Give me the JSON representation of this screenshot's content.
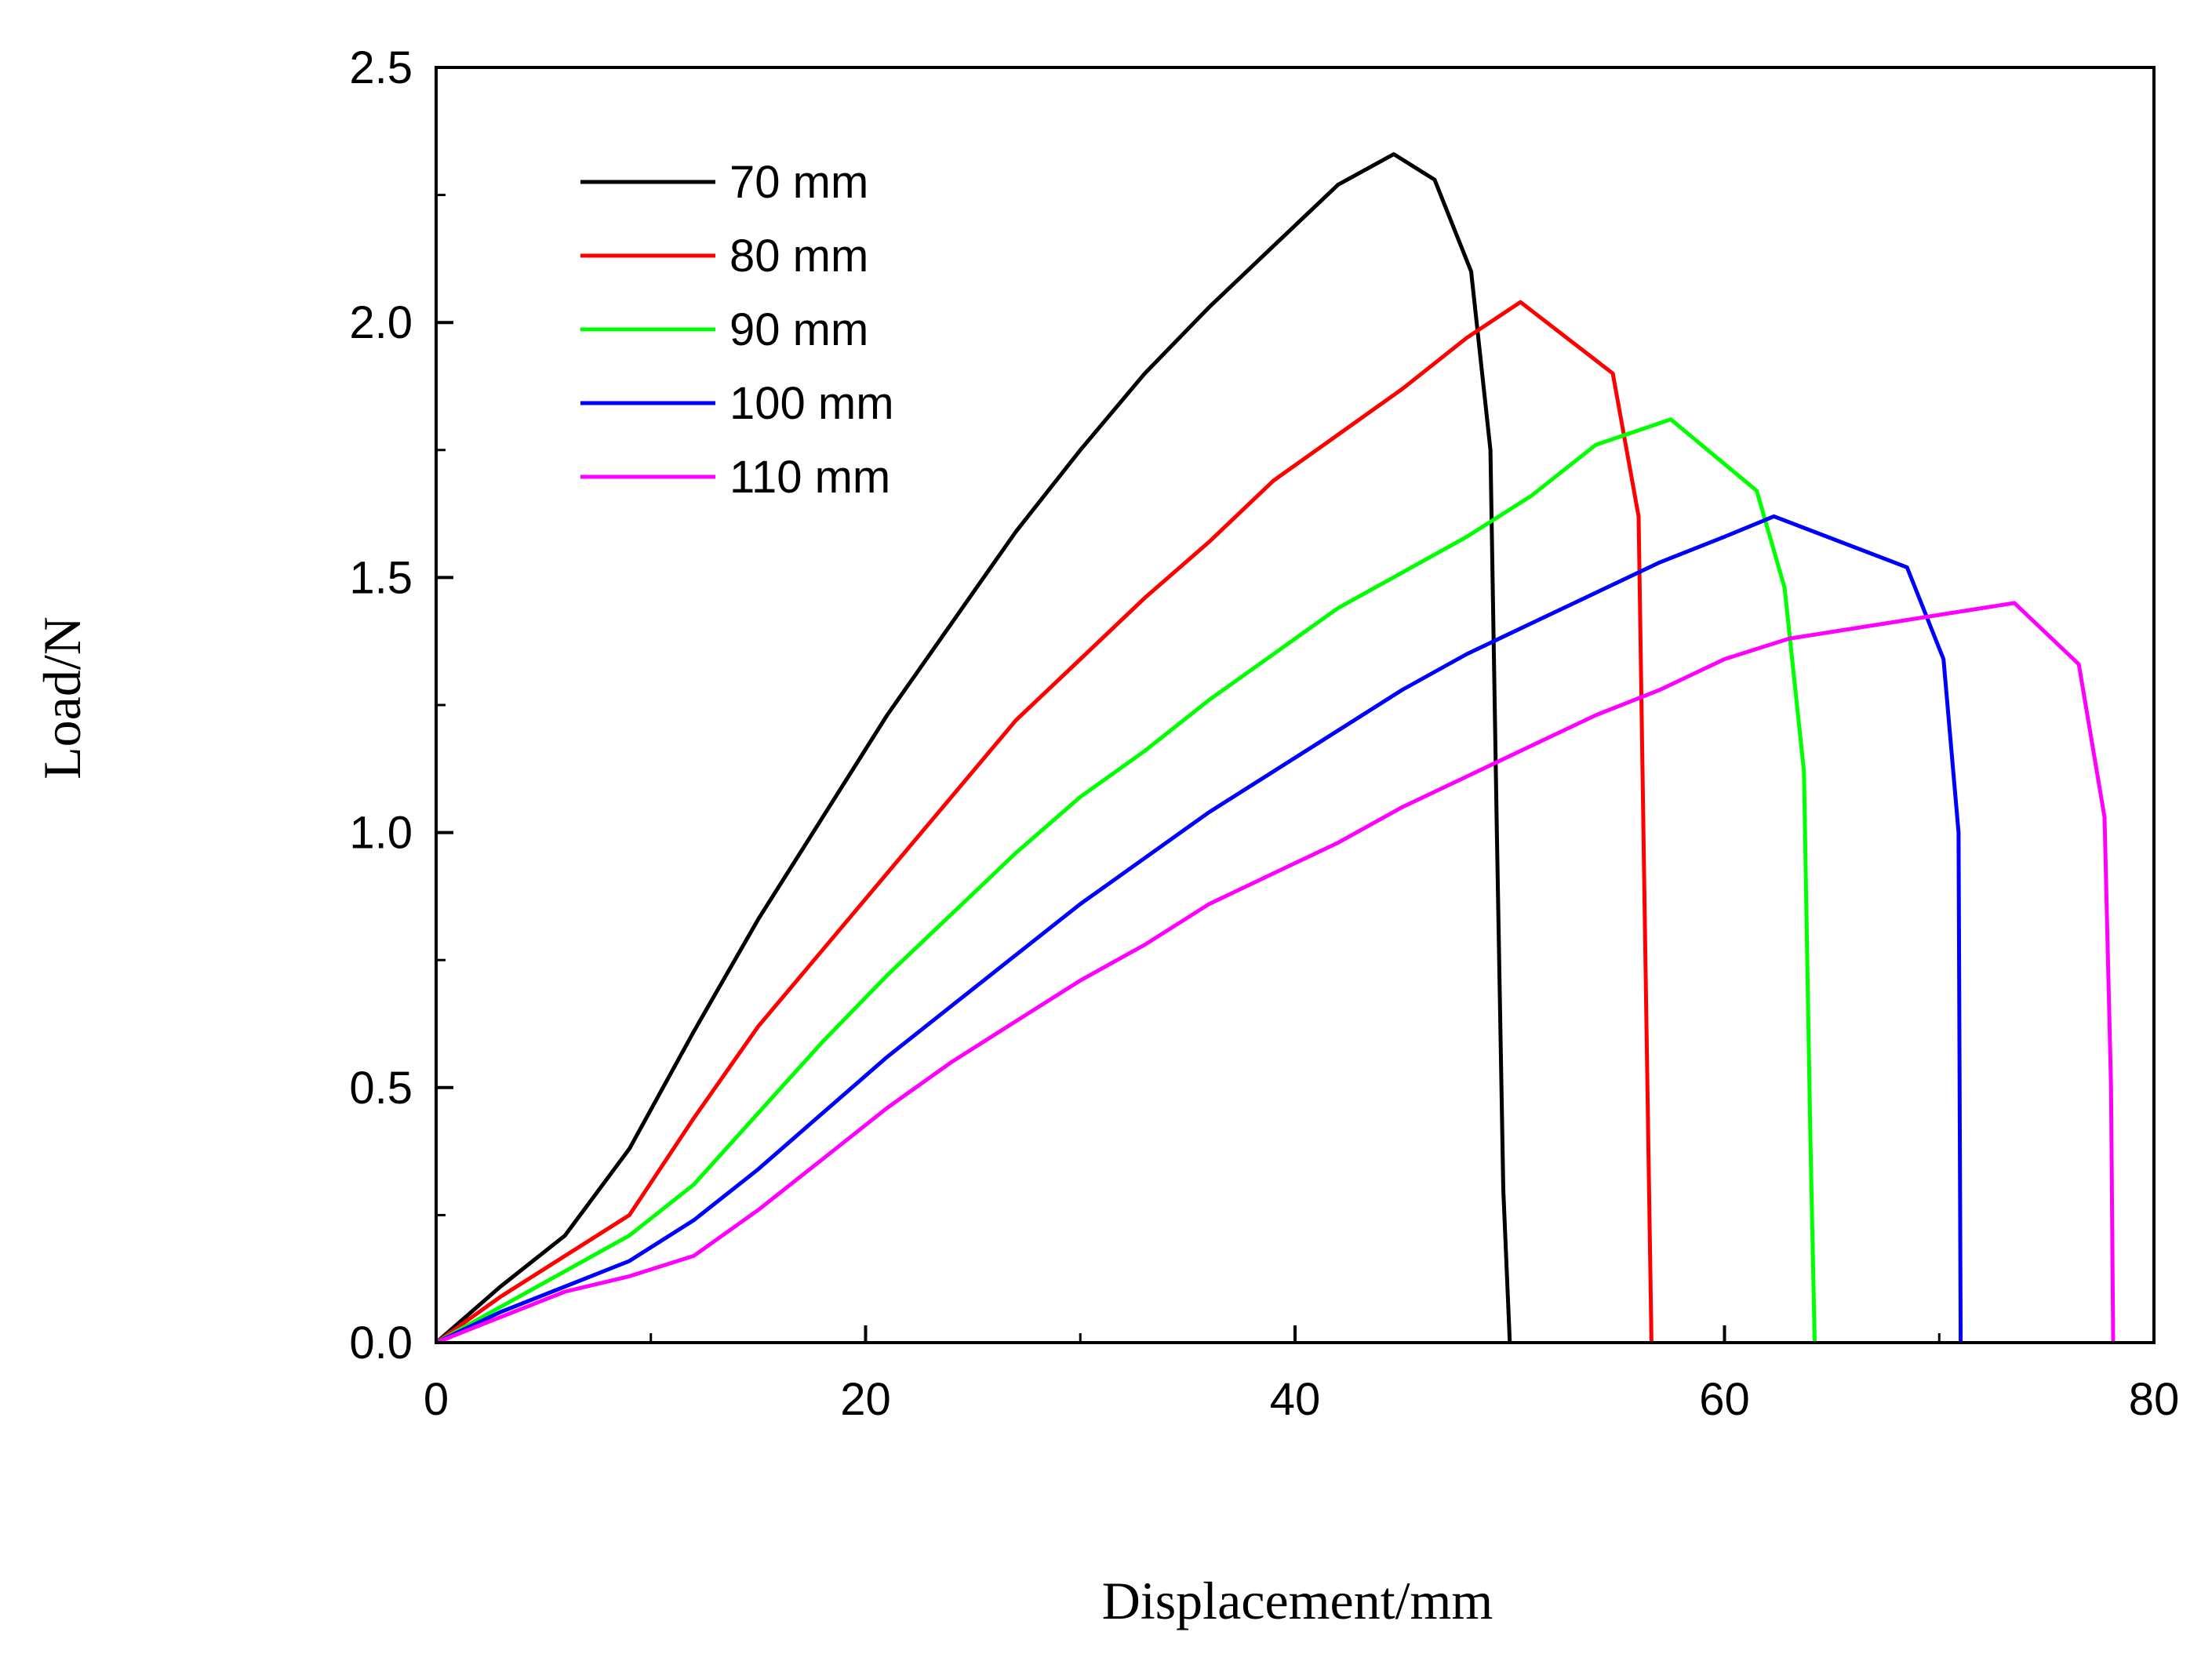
{
  "chart_data": {
    "type": "line",
    "xlabel": "Displacement/mm",
    "ylabel": "Load/N",
    "xlim": [
      0,
      80
    ],
    "ylim": [
      0,
      2.5
    ],
    "xticks": [
      0,
      20,
      40,
      60,
      80
    ],
    "xtick_labels": [
      "0",
      "20",
      "40",
      "60",
      "80"
    ],
    "yticks": [
      0,
      0.5,
      1.0,
      1.5,
      2.0,
      2.5
    ],
    "ytick_labels": [
      "0.0",
      "0.5",
      "1.0",
      "1.5",
      "2.0",
      "2.5"
    ],
    "grid": false,
    "legend_position": "top-left",
    "series": [
      {
        "name": "70 mm",
        "color": "#000000",
        "x": [
          0,
          3,
          6,
          9,
          12,
          15,
          18,
          21,
          24,
          27,
          30,
          33,
          36,
          39,
          42,
          44.6,
          46.5,
          48.2,
          49.1,
          49.4,
          49.7,
          50.0
        ],
        "y": [
          0,
          0.11,
          0.21,
          0.38,
          0.61,
          0.83,
          1.03,
          1.23,
          1.41,
          1.59,
          1.75,
          1.9,
          2.03,
          2.15,
          2.27,
          2.33,
          2.28,
          2.1,
          1.75,
          1.0,
          0.3,
          0
        ]
      },
      {
        "name": "80 mm",
        "color": "#ff0000",
        "x": [
          0,
          3,
          6,
          9,
          12,
          15,
          18,
          21,
          24,
          27,
          30,
          33,
          36,
          39,
          42,
          45,
          48,
          50.5,
          54.8,
          56.0,
          56.3,
          56.6
        ],
        "y": [
          0,
          0.09,
          0.17,
          0.25,
          0.44,
          0.62,
          0.77,
          0.92,
          1.07,
          1.22,
          1.34,
          1.46,
          1.57,
          1.69,
          1.78,
          1.87,
          1.97,
          2.04,
          1.9,
          1.62,
          0.8,
          0
        ]
      },
      {
        "name": "90 mm",
        "color": "#00ff00",
        "x": [
          0,
          3,
          6,
          9,
          12,
          15,
          18,
          21,
          24,
          27,
          30,
          33,
          36,
          39,
          42,
          45,
          48,
          51,
          54,
          57.5,
          61.5,
          62.8,
          63.7,
          64.0,
          64.2
        ],
        "y": [
          0,
          0.07,
          0.14,
          0.21,
          0.31,
          0.45,
          0.59,
          0.72,
          0.84,
          0.96,
          1.07,
          1.16,
          1.26,
          1.35,
          1.44,
          1.51,
          1.58,
          1.66,
          1.76,
          1.81,
          1.67,
          1.48,
          1.12,
          0.4,
          0
        ]
      },
      {
        "name": "100 mm",
        "color": "#0000ff",
        "x": [
          0,
          3,
          6,
          9,
          12,
          15,
          18,
          21,
          24,
          27,
          30,
          33,
          36,
          39,
          42,
          45,
          48,
          51,
          54,
          57,
          60,
          62.3,
          68.5,
          70.2,
          70.9,
          71.0
        ],
        "y": [
          0,
          0.06,
          0.11,
          0.16,
          0.24,
          0.34,
          0.45,
          0.56,
          0.66,
          0.76,
          0.86,
          0.95,
          1.04,
          1.12,
          1.2,
          1.28,
          1.35,
          1.41,
          1.47,
          1.53,
          1.58,
          1.62,
          1.52,
          1.34,
          1.0,
          0
        ]
      },
      {
        "name": "110 mm",
        "color": "#ff00ff",
        "x": [
          0,
          3,
          6,
          9,
          12,
          15,
          18,
          21,
          24,
          27,
          30,
          33,
          36,
          39,
          42,
          45,
          48,
          51,
          54,
          57,
          60,
          63,
          66,
          69,
          73.5,
          76.5,
          77.7,
          78.0,
          78.1
        ],
        "y": [
          0,
          0.05,
          0.1,
          0.13,
          0.17,
          0.26,
          0.36,
          0.46,
          0.55,
          0.63,
          0.71,
          0.78,
          0.86,
          0.92,
          0.98,
          1.05,
          1.11,
          1.17,
          1.23,
          1.28,
          1.34,
          1.38,
          1.4,
          1.42,
          1.45,
          1.33,
          1.03,
          0.5,
          0
        ]
      }
    ]
  }
}
